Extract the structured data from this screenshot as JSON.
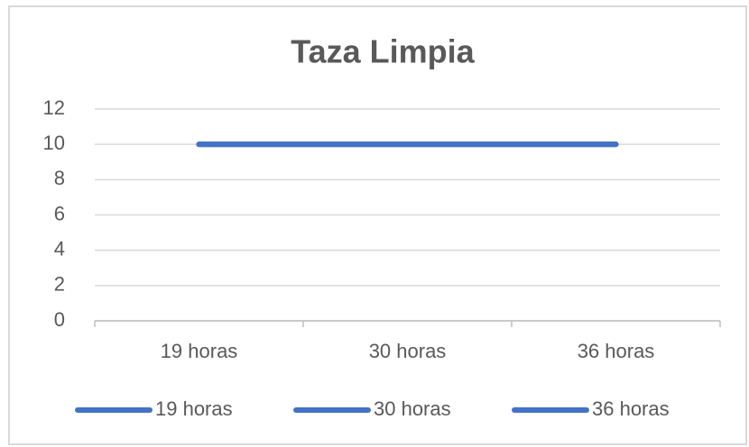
{
  "chart_data": {
    "type": "line",
    "title": "Taza Limpia",
    "categories": [
      "19 horas",
      "30 horas",
      "36 horas"
    ],
    "series": [
      {
        "name": "19 horas",
        "color": "#4472c4",
        "values": [
          10,
          10,
          10
        ]
      },
      {
        "name": "30 horas",
        "color": "#4472c4",
        "values": [
          10,
          10,
          10
        ]
      },
      {
        "name": "36 horas",
        "color": "#4472c4",
        "values": [
          10,
          10,
          10
        ]
      }
    ],
    "ylim": [
      0,
      12
    ],
    "yticks": [
      0,
      2,
      4,
      6,
      8,
      10,
      12
    ],
    "grid": true,
    "legend": "bottom"
  }
}
